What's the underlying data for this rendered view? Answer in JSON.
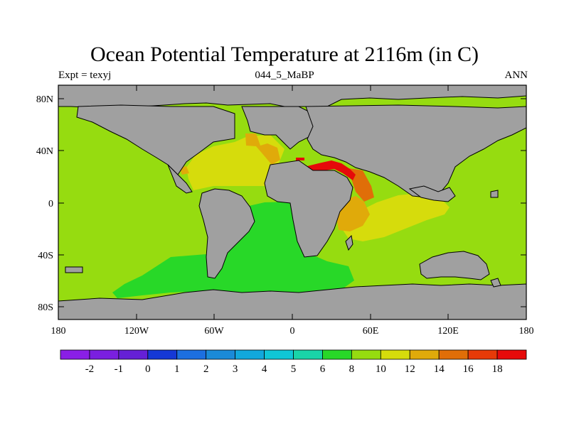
{
  "title": "Ocean Potential Temperature at 2116m (in C)",
  "left_label": "Expt = texyj",
  "center_label": "044_5_MaBP",
  "right_label": "ANN",
  "lat_ticks": [
    "80N",
    "40N",
    "0",
    "40S",
    "80S"
  ],
  "lon_ticks": [
    "180",
    "120W",
    "60W",
    "0",
    "60E",
    "120E",
    "180"
  ],
  "colorbar": {
    "labels": [
      "-2",
      "-1",
      "0",
      "1",
      "2",
      "3",
      "4",
      "5",
      "6",
      "8",
      "10",
      "12",
      "14",
      "16",
      "18"
    ],
    "colors": [
      "#8a1fe6",
      "#7a1fe0",
      "#6520d6",
      "#1538d6",
      "#1c6fe0",
      "#1a8ad8",
      "#12a8dc",
      "#10c6d6",
      "#19d4a8",
      "#28d828",
      "#96dc10",
      "#d6dc0c",
      "#e0aa0a",
      "#e06e08",
      "#e63a08",
      "#e60a0a"
    ]
  },
  "colors": {
    "land": "#a0a0a0",
    "ocean_6_8": "#28d828",
    "ocean_8_10": "#96dc10",
    "ocean_10_12": "#d6dc0c",
    "ocean_12_14": "#e0aa0a",
    "ocean_14_16": "#e06e08",
    "ocean_16_18": "#e63a08",
    "ocean_18_plus": "#e60a0a"
  }
}
